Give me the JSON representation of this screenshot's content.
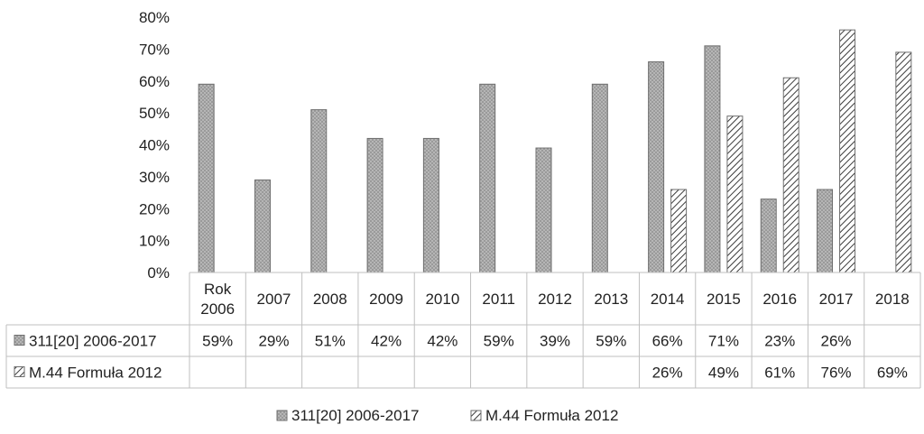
{
  "chart_data": {
    "type": "bar",
    "ylim": [
      0,
      80
    ],
    "y_ticks": [
      "0%",
      "10%",
      "20%",
      "30%",
      "40%",
      "50%",
      "60%",
      "70%",
      "80%"
    ],
    "grid": false,
    "legend_position": "bottom",
    "categories": [
      [
        "Rok",
        "2006"
      ],
      [
        "2007"
      ],
      [
        "2008"
      ],
      [
        "2009"
      ],
      [
        "2010"
      ],
      [
        "2011"
      ],
      [
        "2012"
      ],
      [
        "2013"
      ],
      [
        "2014"
      ],
      [
        "2015"
      ],
      [
        "2016"
      ],
      [
        "2017"
      ],
      [
        "2018"
      ]
    ],
    "series": [
      {
        "name": "311[20] 2006-2017",
        "pattern": "dots",
        "values": [
          59,
          29,
          51,
          42,
          42,
          59,
          39,
          59,
          66,
          71,
          23,
          26,
          null
        ],
        "labels": [
          "59%",
          "29%",
          "51%",
          "42%",
          "42%",
          "59%",
          "39%",
          "59%",
          "66%",
          "71%",
          "23%",
          "26%",
          ""
        ]
      },
      {
        "name": "M.44 Formuła 2012",
        "pattern": "diagonal",
        "values": [
          null,
          null,
          null,
          null,
          null,
          null,
          null,
          null,
          26,
          49,
          61,
          76,
          69
        ],
        "labels": [
          "",
          "",
          "",
          "",
          "",
          "",
          "",
          "",
          "26%",
          "49%",
          "61%",
          "76%",
          "69%"
        ]
      }
    ]
  },
  "colors": {
    "series_dots_fill": "#9a9a9a",
    "series_dots_dot": "#e0e0e0",
    "series_diag_line": "#3a3a3a",
    "axis": "#bfbfbf",
    "bar_border": "#6e6e6e",
    "text": "#222222"
  }
}
